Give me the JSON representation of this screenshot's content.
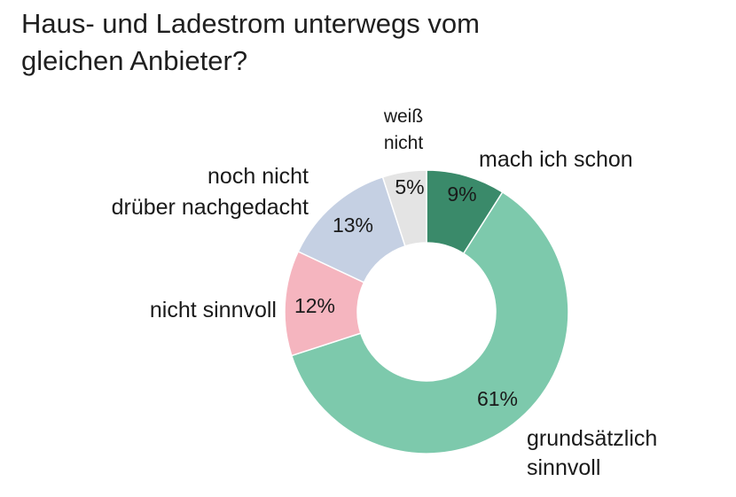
{
  "title": "Haus- und Ladestrom unterwegs vom\ngleichen Anbieter?",
  "chart_data": {
    "type": "pie",
    "variant": "donut",
    "start_angle_deg": 0,
    "direction": "clockwise",
    "slices": [
      {
        "label": [
          "mach ich schon"
        ],
        "value": 9,
        "pct_label": "9%",
        "color": "#3a8a6a",
        "pct_label_color": "#ffffff"
      },
      {
        "label": [
          "grundsätzlich",
          "sinnvoll"
        ],
        "value": 61,
        "pct_label": "61%",
        "color": "#7dc9ac",
        "pct_label_color": "#1a1a1a"
      },
      {
        "label": [
          "nicht sinnvoll"
        ],
        "value": 12,
        "pct_label": "12%",
        "color": "#f5b5bf",
        "pct_label_color": "#1a1a1a"
      },
      {
        "label": [
          "noch nicht",
          "drüber nachgedacht"
        ],
        "value": 13,
        "pct_label": "13%",
        "color": "#c5d0e3",
        "pct_label_color": "#1a1a1a"
      },
      {
        "label": [
          "weiß",
          "nicht"
        ],
        "value": 5,
        "pct_label": "5%",
        "color": "#e4e4e4",
        "pct_label_color": "#1a1a1a"
      }
    ]
  }
}
